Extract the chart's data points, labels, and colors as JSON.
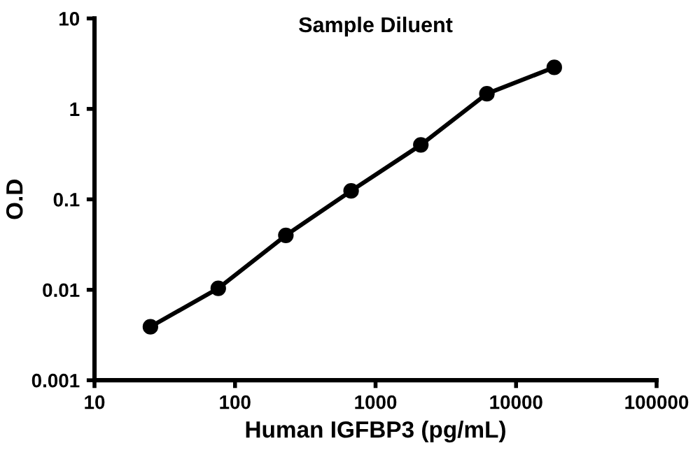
{
  "chart_data": {
    "type": "line",
    "title": "Sample Diluent",
    "xlabel": "Human IGFBP3 (pg/mL)",
    "ylabel": "O.D",
    "log": "xy",
    "x": [
      25,
      76,
      230,
      670,
      2100,
      6200,
      18700
    ],
    "series": [
      {
        "color": "#000000",
        "values": [
          0.0039,
          0.0104,
          0.04,
          0.124,
          0.4,
          1.47,
          2.88
        ]
      }
    ],
    "xlim": [
      10,
      100000
    ],
    "xticks": [
      10,
      100,
      1000,
      10000,
      100000
    ],
    "ylim": [
      0.001,
      10
    ],
    "yticks": [
      0.001,
      0.01,
      0.1,
      1,
      10
    ],
    "grid": false,
    "legend": false,
    "marker": "circle",
    "line_style": "solid"
  }
}
